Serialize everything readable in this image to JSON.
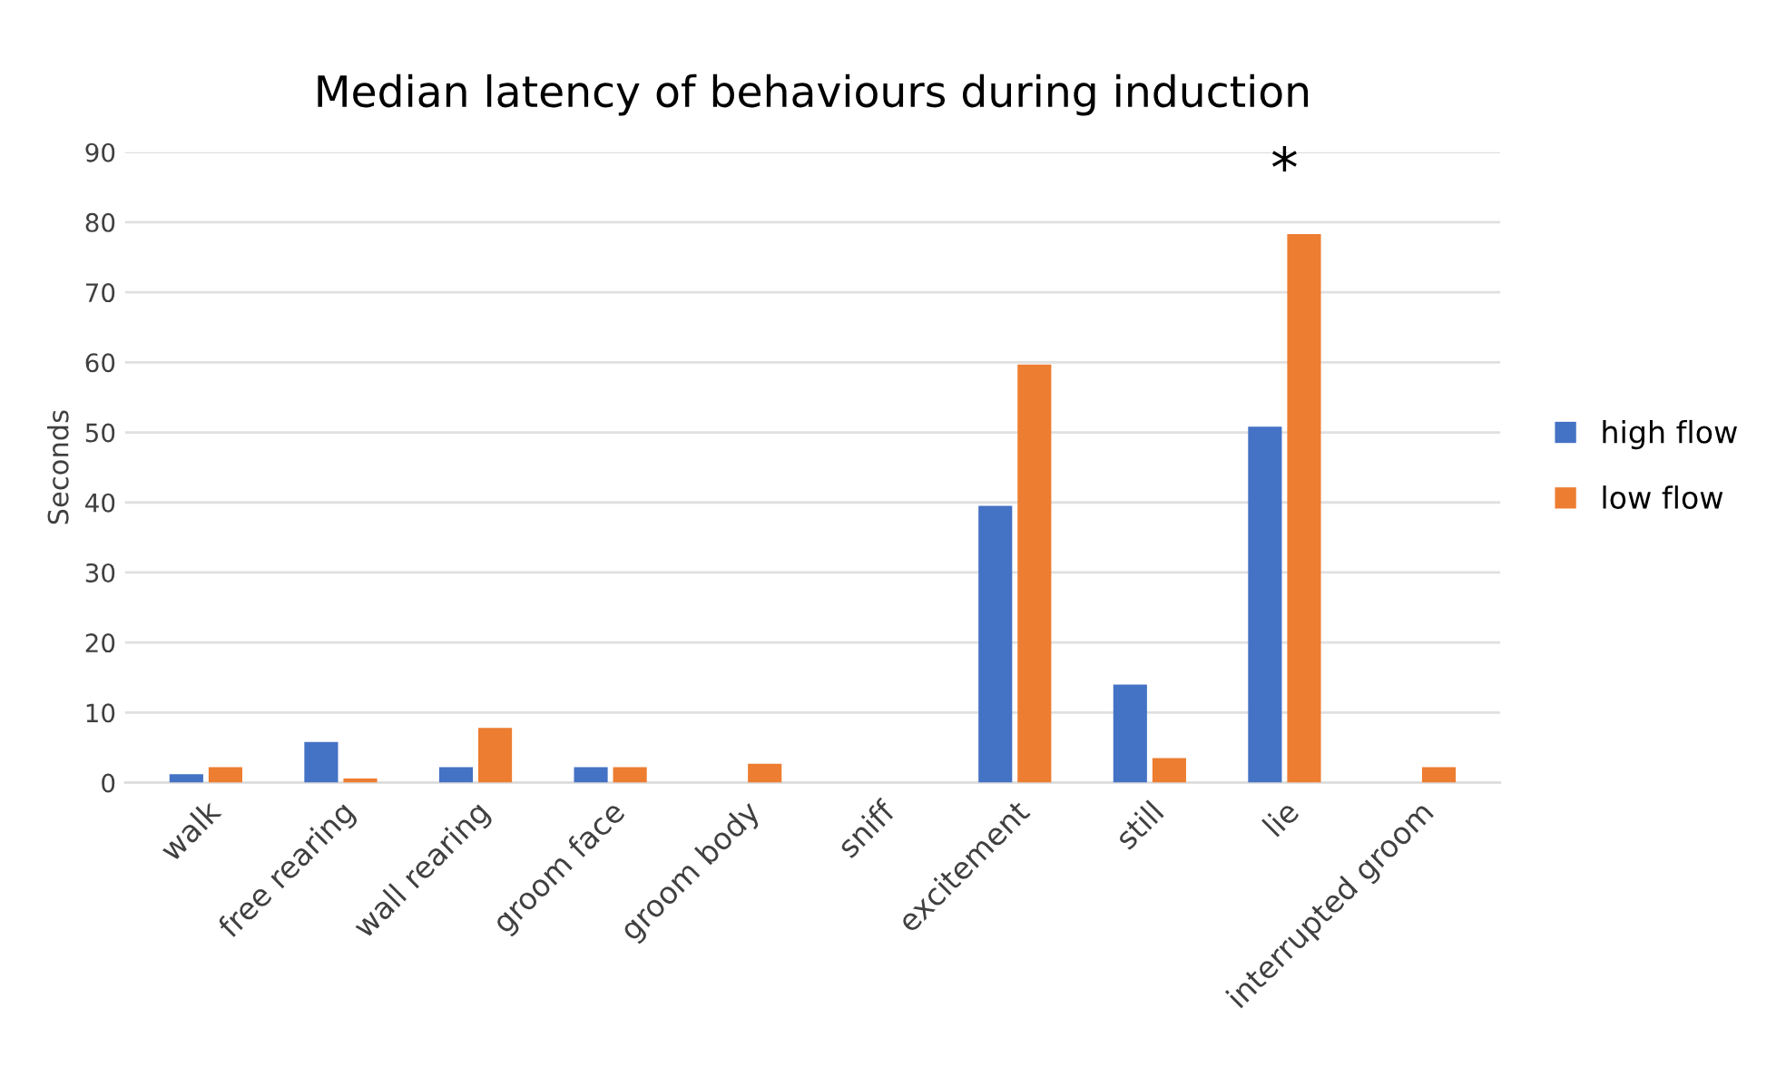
{
  "chart_data": {
    "type": "bar",
    "title": "Median latency of behaviours during induction",
    "ylabel": "Seconds",
    "categories": [
      "walk",
      "free rearing",
      "wall rearing",
      "groom face",
      "groom body",
      "sniff",
      "excitement",
      "still",
      "lie",
      "interrupted groom"
    ],
    "series": [
      {
        "name": "high flow",
        "color": "#4472c4",
        "values": [
          1.2,
          5.8,
          2.2,
          2.2,
          0,
          0,
          39.5,
          14,
          50.8,
          0
        ]
      },
      {
        "name": "low flow",
        "color": "#ed7d31",
        "values": [
          2.2,
          0.6,
          7.8,
          2.2,
          2.7,
          0,
          59.7,
          3.5,
          78.3,
          2.2
        ]
      }
    ],
    "ylim": [
      0,
      90
    ],
    "yticks": [
      0,
      10,
      20,
      30,
      40,
      50,
      60,
      70,
      80,
      90
    ],
    "grid": "y",
    "legend": "right",
    "annotations": [
      "*"
    ]
  }
}
